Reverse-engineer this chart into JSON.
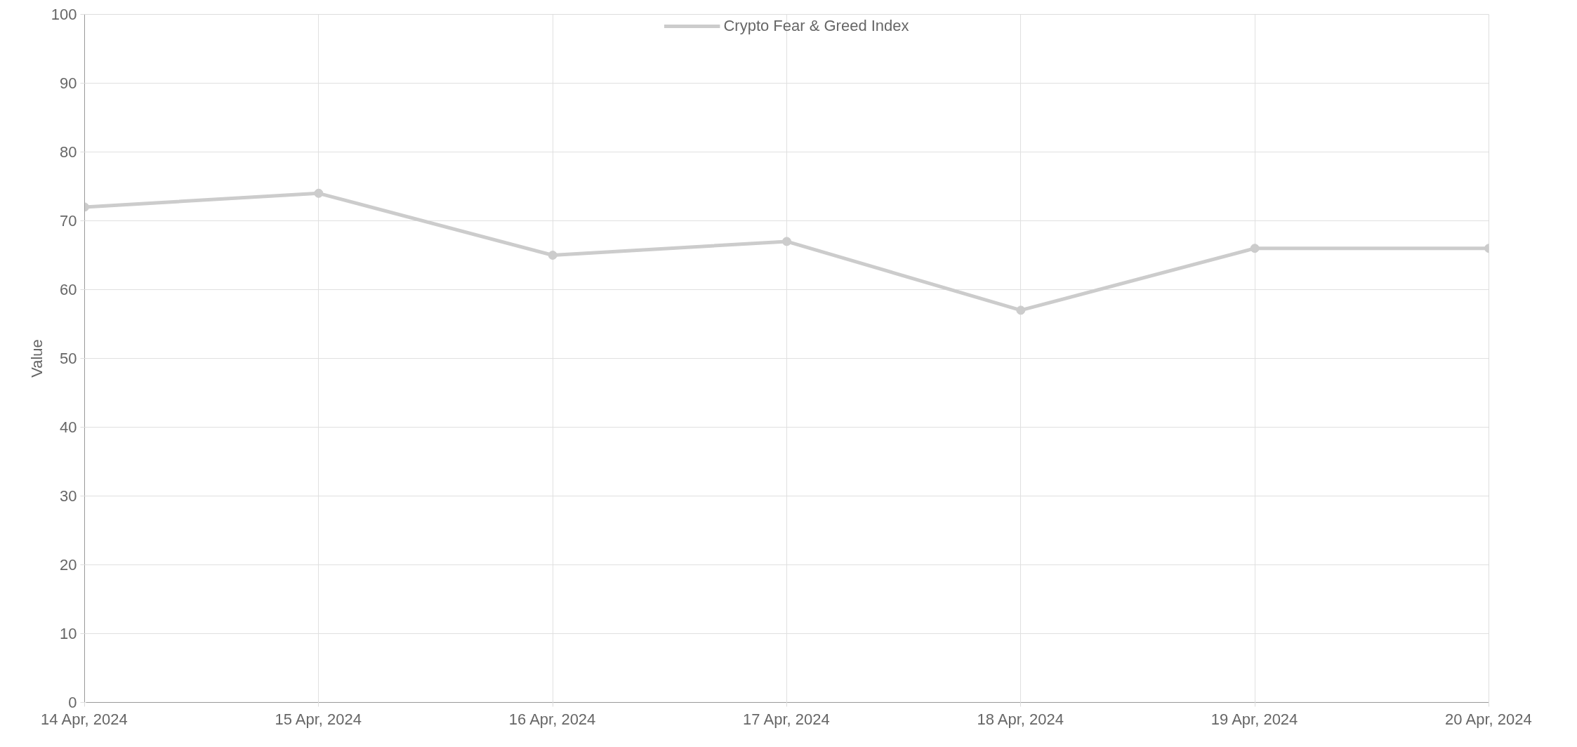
{
  "chart_data": {
    "type": "line",
    "ylabel": "Value",
    "categories": [
      "14 Apr, 2024",
      "15 Apr, 2024",
      "16 Apr, 2024",
      "17 Apr, 2024",
      "18 Apr, 2024",
      "19 Apr, 2024",
      "20 Apr, 2024"
    ],
    "series": [
      {
        "name": "Crypto Fear & Greed Index",
        "color": "#cccccc",
        "values": [
          72,
          74,
          65,
          67,
          57,
          66,
          66
        ]
      }
    ],
    "ylim": [
      0,
      100
    ],
    "yticks": [
      0,
      10,
      20,
      30,
      40,
      50,
      60,
      70,
      80,
      90,
      100
    ],
    "grid": true,
    "legend": "top",
    "marker": "circle",
    "line_style": "solid"
  }
}
